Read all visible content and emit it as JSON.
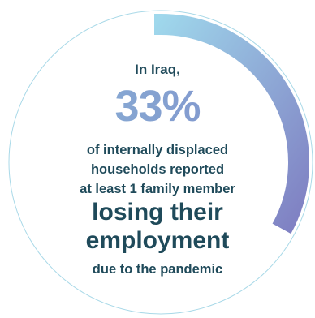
{
  "infographic": {
    "intro": "In Iraq,",
    "percentage": "33%",
    "percentage_value": 33,
    "body_line_1": "of internally displaced",
    "body_line_2": "households reported",
    "body_line_3": "at least 1 family member",
    "emphasis_line_1": "losing their",
    "emphasis_line_2": "employment",
    "outro": "due to the pandemic"
  },
  "colors": {
    "text_dark": "#1f4a5a",
    "percent_start": "#8ab6d6",
    "percent_end": "#7f8ccb",
    "ring_start": "#9fd8ec",
    "ring_end": "#7f7fc2",
    "thin_ring": "#a9d9e8"
  }
}
